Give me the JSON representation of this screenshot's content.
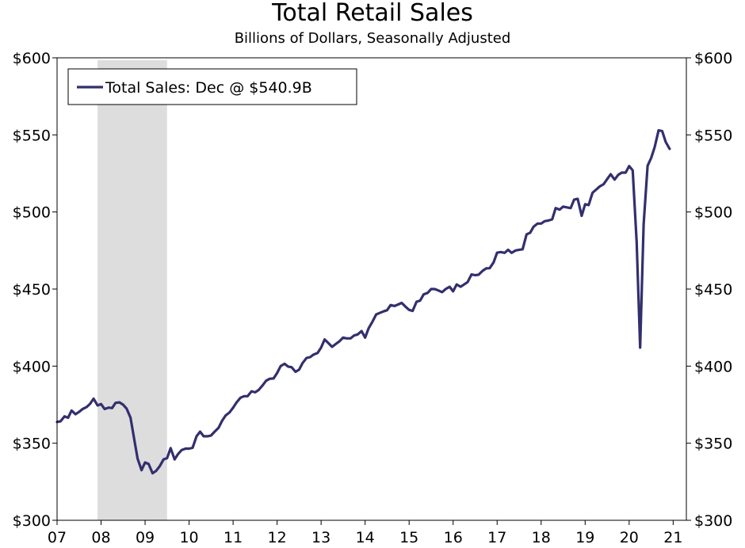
{
  "chart_data": {
    "type": "line",
    "title": "Total Retail Sales",
    "subtitle": "Billions of Dollars, Seasonally Adjusted",
    "xlabel": "",
    "ylabel": "",
    "xlim": [
      2007.0,
      2021.3
    ],
    "ylim": [
      300,
      600
    ],
    "grid": false,
    "x_tick_labels": [
      "07",
      "08",
      "09",
      "10",
      "11",
      "12",
      "13",
      "14",
      "15",
      "16",
      "17",
      "18",
      "19",
      "20",
      "21"
    ],
    "x_tick_values": [
      2007,
      2008,
      2009,
      2010,
      2011,
      2012,
      2013,
      2014,
      2015,
      2016,
      2017,
      2018,
      2019,
      2020,
      2021
    ],
    "y_ticks": [
      300,
      350,
      400,
      450,
      500,
      550,
      600
    ],
    "y_tick_labels": [
      "$300",
      "$350",
      "$400",
      "$450",
      "$500",
      "$550",
      "$600"
    ],
    "recession": {
      "start": 2007.92,
      "end": 2009.5,
      "color": "#dddddd"
    },
    "legend": {
      "location": "top-left",
      "label": "Total Sales: Dec @ $540.9B"
    },
    "series": [
      {
        "name": "Total Sales: Dec @ $540.9B",
        "color": "#332f6e",
        "x": [
          2007.0,
          2007.08,
          2007.17,
          2007.25,
          2007.33,
          2007.42,
          2007.5,
          2007.58,
          2007.67,
          2007.75,
          2007.83,
          2007.92,
          2008.0,
          2008.08,
          2008.17,
          2008.25,
          2008.33,
          2008.42,
          2008.5,
          2008.58,
          2008.67,
          2008.75,
          2008.83,
          2008.92,
          2009.0,
          2009.08,
          2009.17,
          2009.25,
          2009.33,
          2009.42,
          2009.5,
          2009.58,
          2009.67,
          2009.75,
          2009.83,
          2009.92,
          2010.0,
          2010.08,
          2010.17,
          2010.25,
          2010.33,
          2010.42,
          2010.5,
          2010.58,
          2010.67,
          2010.75,
          2010.83,
          2010.92,
          2011.0,
          2011.08,
          2011.17,
          2011.25,
          2011.33,
          2011.42,
          2011.5,
          2011.58,
          2011.67,
          2011.75,
          2011.83,
          2011.92,
          2012.0,
          2012.08,
          2012.17,
          2012.25,
          2012.33,
          2012.42,
          2012.5,
          2012.58,
          2012.67,
          2012.75,
          2012.83,
          2012.92,
          2013.0,
          2013.08,
          2013.17,
          2013.25,
          2013.33,
          2013.42,
          2013.5,
          2013.58,
          2013.67,
          2013.75,
          2013.83,
          2013.92,
          2014.0,
          2014.08,
          2014.17,
          2014.25,
          2014.33,
          2014.42,
          2014.5,
          2014.58,
          2014.67,
          2014.75,
          2014.83,
          2014.92,
          2015.0,
          2015.08,
          2015.17,
          2015.25,
          2015.33,
          2015.42,
          2015.5,
          2015.58,
          2015.67,
          2015.75,
          2015.83,
          2015.92,
          2016.0,
          2016.08,
          2016.17,
          2016.25,
          2016.33,
          2016.42,
          2016.5,
          2016.58,
          2016.67,
          2016.75,
          2016.83,
          2016.92,
          2017.0,
          2017.08,
          2017.17,
          2017.25,
          2017.33,
          2017.42,
          2017.5,
          2017.58,
          2017.67,
          2017.75,
          2017.83,
          2017.92,
          2018.0,
          2018.08,
          2018.17,
          2018.25,
          2018.33,
          2018.42,
          2018.5,
          2018.58,
          2018.67,
          2018.75,
          2018.83,
          2018.92,
          2019.0,
          2019.08,
          2019.17,
          2019.25,
          2019.33,
          2019.42,
          2019.5,
          2019.58,
          2019.67,
          2019.75,
          2019.83,
          2019.92,
          2020.0,
          2020.08,
          2020.17,
          2020.25,
          2020.33,
          2020.42,
          2020.5,
          2020.58,
          2020.67,
          2020.75,
          2020.83,
          2020.92
        ],
        "values": [
          363.8,
          364.2,
          367.4,
          366.5,
          371.2,
          368.8,
          370.3,
          372.2,
          373.4,
          375.5,
          378.9,
          374.5,
          375.4,
          372.2,
          373.1,
          372.8,
          376.2,
          376.5,
          375.0,
          372.5,
          366.5,
          353.0,
          340.0,
          332.5,
          337.5,
          336.5,
          330.5,
          332.0,
          335.0,
          339.5,
          340.3,
          346.8,
          339.5,
          343.0,
          345.5,
          346.5,
          346.5,
          347.0,
          354.5,
          357.5,
          354.5,
          354.5,
          355.0,
          357.5,
          360.0,
          364.5,
          368.0,
          370.0,
          373.0,
          376.5,
          379.5,
          380.5,
          380.5,
          383.7,
          383.0,
          384.5,
          387.5,
          390.5,
          391.8,
          392.0,
          395.5,
          400.0,
          401.5,
          399.7,
          399.3,
          396.3,
          397.7,
          402.0,
          405.3,
          405.8,
          407.5,
          408.5,
          412.0,
          417.3,
          414.8,
          412.5,
          414.3,
          416.2,
          418.5,
          418.0,
          418.0,
          419.9,
          420.5,
          422.7,
          418.5,
          424.5,
          429.0,
          433.5,
          434.5,
          435.5,
          436.3,
          439.6,
          439.0,
          440.0,
          441.0,
          438.5,
          436.5,
          435.8,
          441.8,
          442.5,
          446.5,
          447.5,
          450.0,
          450.0,
          449.0,
          448.0,
          450.0,
          451.5,
          448.5,
          453.0,
          451.5,
          453.0,
          454.5,
          459.5,
          459.0,
          459.3,
          461.8,
          463.4,
          463.5,
          467.3,
          473.6,
          474.0,
          473.5,
          475.5,
          473.5,
          475.0,
          475.5,
          475.8,
          485.5,
          486.5,
          490.5,
          492.5,
          492.5,
          494.0,
          494.5,
          495.2,
          502.5,
          501.5,
          503.5,
          503.0,
          502.5,
          508.0,
          508.5,
          497.5,
          505.0,
          504.5,
          512.5,
          514.5,
          516.5,
          518.0,
          521.3,
          524.5,
          521.0,
          524.0,
          525.5,
          525.5,
          529.8,
          527.0,
          480.5,
          412.0,
          492.0,
          530.0,
          535.0,
          542.0,
          553.0,
          552.5,
          545.5,
          540.9
        ]
      }
    ]
  }
}
